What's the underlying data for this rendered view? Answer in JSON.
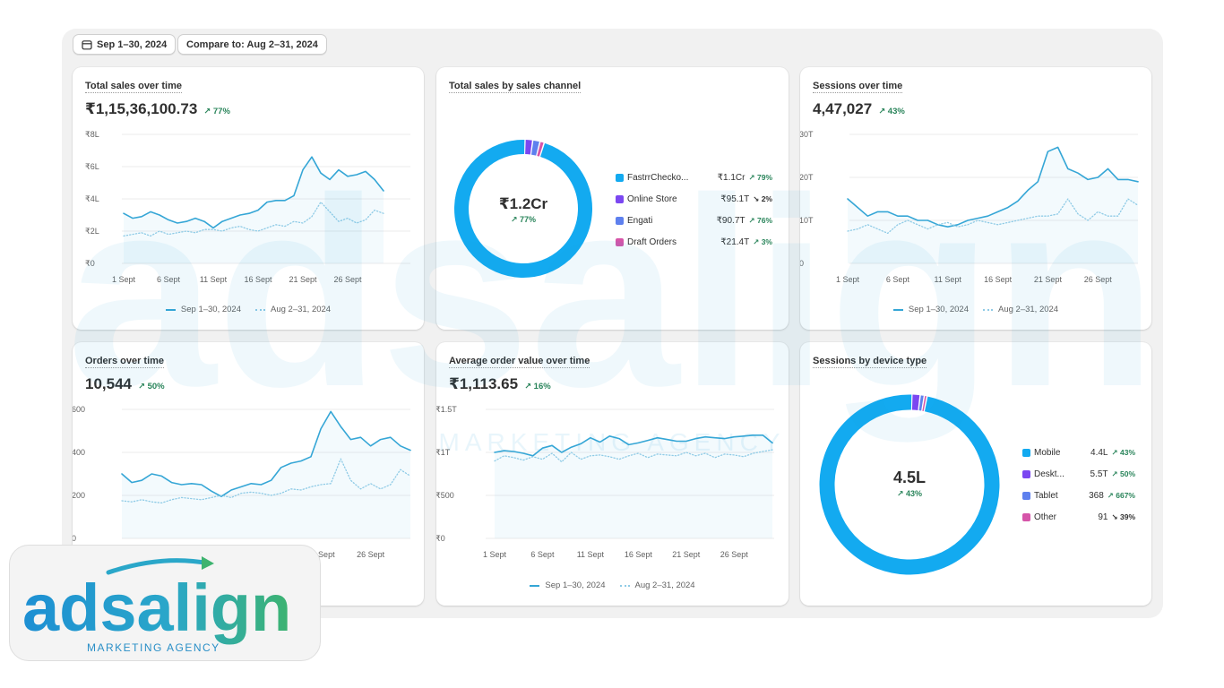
{
  "toolbar": {
    "date_range": "Sep 1–30, 2024",
    "compare": "Compare to: Aug 2–31, 2024",
    "calendar_icon": "calendar-icon"
  },
  "legend": {
    "current": "Sep 1–30, 2024",
    "previous": "Aug 2–31, 2024"
  },
  "colors": {
    "current": "#35a6d6",
    "previous": "#8fcbe6",
    "positive": "#29845a"
  },
  "cards": {
    "total_sales": {
      "title": "Total sales over time",
      "value": "₹1,15,36,100.73",
      "delta": "↗ 77%"
    },
    "sales_channel": {
      "title": "Total sales by sales channel",
      "center_value": "₹1.2Cr",
      "center_delta": "↗ 77%"
    },
    "sessions": {
      "title": "Sessions over time",
      "value": "4,47,027",
      "delta": "↗ 43%"
    },
    "orders": {
      "title": "Orders over time",
      "value": "10,544",
      "delta": "↗ 50%"
    },
    "aov": {
      "title": "Average order value over time",
      "value": "₹1,113.65",
      "delta": "↗ 16%"
    },
    "device": {
      "title": "Sessions by device type",
      "center_value": "4.5L",
      "center_delta": "↗ 43%"
    }
  },
  "watermark": {
    "brand": "adsalign",
    "tagline": "MARKETING AGENCY"
  },
  "chart_data": [
    {
      "id": "total_sales",
      "type": "line",
      "title": "Total sales over time",
      "x_ticks": [
        "1 Sept",
        "6 Sept",
        "11 Sept",
        "16 Sept",
        "21 Sept",
        "26 Sept"
      ],
      "y_ticks": [
        "₹0",
        "₹2L",
        "₹4L",
        "₹6L",
        "₹8L"
      ],
      "ylim": [
        0,
        8
      ],
      "x": [
        1,
        2,
        3,
        4,
        5,
        6,
        7,
        8,
        9,
        10,
        11,
        12,
        13,
        14,
        15,
        16,
        17,
        18,
        19,
        20,
        21,
        22,
        23,
        24,
        25,
        26,
        27,
        28,
        29,
        30
      ],
      "series": [
        {
          "name": "Sep 1–30, 2024",
          "style": "solid",
          "values": [
            3.1,
            2.8,
            2.9,
            3.2,
            3.0,
            2.7,
            2.5,
            2.6,
            2.8,
            2.6,
            2.2,
            2.6,
            2.8,
            3.0,
            3.1,
            3.3,
            3.8,
            3.9,
            3.9,
            4.2,
            5.8,
            6.6,
            5.6,
            5.2,
            5.8,
            5.4,
            5.5,
            5.7,
            5.2,
            4.5
          ]
        },
        {
          "name": "Aug 2–31, 2024",
          "style": "dotted",
          "values": [
            1.7,
            1.8,
            1.9,
            1.7,
            2.0,
            1.8,
            1.9,
            2.0,
            1.9,
            2.1,
            2.1,
            2.0,
            2.2,
            2.3,
            2.1,
            2.0,
            2.2,
            2.4,
            2.3,
            2.6,
            2.5,
            2.9,
            3.8,
            3.2,
            2.6,
            2.8,
            2.5,
            2.7,
            3.3,
            3.1
          ]
        }
      ]
    },
    {
      "id": "sales_channel",
      "type": "pie",
      "title": "Total sales by sales channel",
      "slices": [
        {
          "label": "FastrrChecko...",
          "value_label": "₹1.1Cr",
          "delta": "↗ 79%",
          "dir": "up",
          "color": "#13aaf0",
          "share": 0.955
        },
        {
          "label": "Online Store",
          "value_label": "₹95.1T",
          "delta": "↘ 2%",
          "dir": "down",
          "color": "#7b47f1",
          "share": 0.018
        },
        {
          "label": "Engati",
          "value_label": "₹90.7T",
          "delta": "↗ 76%",
          "dir": "up",
          "color": "#5e80ee",
          "share": 0.017
        },
        {
          "label": "Draft Orders",
          "value_label": "₹21.4T",
          "delta": "↗ 3%",
          "dir": "up",
          "color": "#d655a9",
          "share": 0.01
        }
      ]
    },
    {
      "id": "sessions",
      "type": "line",
      "title": "Sessions over time",
      "x_ticks": [
        "1 Sept",
        "6 Sept",
        "11 Sept",
        "16 Sept",
        "21 Sept",
        "26 Sept"
      ],
      "y_ticks": [
        "0",
        "10T",
        "20T",
        "30T"
      ],
      "ylim": [
        0,
        30
      ],
      "x": [
        1,
        2,
        3,
        4,
        5,
        6,
        7,
        8,
        9,
        10,
        11,
        12,
        13,
        14,
        15,
        16,
        17,
        18,
        19,
        20,
        21,
        22,
        23,
        24,
        25,
        26,
        27,
        28,
        29,
        30
      ],
      "series": [
        {
          "name": "Sep 1–30, 2024",
          "style": "solid",
          "values": [
            15,
            13,
            11,
            12,
            12,
            11,
            11,
            10,
            10,
            9,
            8.5,
            9,
            10,
            10.5,
            11,
            12,
            13,
            14.5,
            17,
            19,
            26,
            27,
            22,
            21,
            19.5,
            20,
            22,
            19.5,
            19.5,
            19
          ]
        },
        {
          "name": "Aug 2–31, 2024",
          "style": "dotted",
          "values": [
            7.5,
            8,
            9,
            8,
            7,
            9,
            10,
            9,
            8,
            9,
            9.5,
            8.5,
            9,
            10,
            9.5,
            9,
            9.5,
            10,
            10.5,
            11,
            11,
            11.5,
            15,
            11.5,
            10,
            12,
            11,
            11,
            15,
            13.5
          ]
        }
      ]
    },
    {
      "id": "orders",
      "type": "line",
      "title": "Orders over time",
      "x_ticks": [
        "21 Sept",
        "26 Sept"
      ],
      "y_ticks": [
        "0",
        "200",
        "400",
        "600"
      ],
      "ylim": [
        0,
        600
      ],
      "x": [
        1,
        2,
        3,
        4,
        5,
        6,
        7,
        8,
        9,
        10,
        11,
        12,
        13,
        14,
        15,
        16,
        17,
        18,
        19,
        20,
        21,
        22,
        23,
        24,
        25,
        26,
        27,
        28,
        29,
        30
      ],
      "series": [
        {
          "name": "Sep 1–30, 2024",
          "style": "solid",
          "values": [
            300,
            260,
            270,
            300,
            290,
            260,
            250,
            255,
            250,
            220,
            195,
            225,
            240,
            255,
            250,
            270,
            330,
            350,
            360,
            380,
            510,
            590,
            520,
            460,
            470,
            430,
            460,
            470,
            430,
            410
          ]
        },
        {
          "name": "Aug 2–31, 2024",
          "style": "dotted",
          "values": [
            175,
            170,
            180,
            170,
            165,
            180,
            190,
            185,
            180,
            190,
            200,
            190,
            210,
            215,
            210,
            200,
            210,
            230,
            225,
            240,
            250,
            255,
            370,
            270,
            230,
            255,
            230,
            250,
            320,
            290
          ]
        }
      ]
    },
    {
      "id": "aov",
      "type": "line",
      "title": "Average order value over time",
      "x_ticks": [
        "1 Sept",
        "6 Sept",
        "11 Sept",
        "16 Sept",
        "21 Sept",
        "26 Sept"
      ],
      "y_ticks": [
        "₹0",
        "₹500",
        "₹1T",
        "₹1.5T"
      ],
      "ylim": [
        0,
        1500
      ],
      "x": [
        1,
        2,
        3,
        4,
        5,
        6,
        7,
        8,
        9,
        10,
        11,
        12,
        13,
        14,
        15,
        16,
        17,
        18,
        19,
        20,
        21,
        22,
        23,
        24,
        25,
        26,
        27,
        28,
        29,
        30
      ],
      "series": [
        {
          "name": "Sep 1–30, 2024",
          "style": "solid",
          "values": [
            1000,
            1020,
            1010,
            990,
            960,
            1050,
            1080,
            1000,
            1060,
            1100,
            1170,
            1120,
            1190,
            1160,
            1090,
            1110,
            1140,
            1170,
            1150,
            1130,
            1130,
            1160,
            1180,
            1170,
            1160,
            1180,
            1190,
            1200,
            1200,
            1110
          ]
        },
        {
          "name": "Aug 2–31, 2024",
          "style": "dotted",
          "values": [
            900,
            960,
            940,
            910,
            950,
            920,
            990,
            890,
            1000,
            920,
            960,
            970,
            950,
            920,
            960,
            990,
            940,
            980,
            970,
            960,
            1000,
            960,
            990,
            940,
            980,
            970,
            950,
            990,
            1010,
            1030
          ]
        }
      ]
    },
    {
      "id": "device",
      "type": "pie",
      "title": "Sessions by device type",
      "slices": [
        {
          "label": "Mobile",
          "value_label": "4.4L",
          "delta": "↗ 43%",
          "dir": "up",
          "color": "#13aaf0",
          "share": 0.973
        },
        {
          "label": "Deskt...",
          "value_label": "5.5T",
          "delta": "↗ 50%",
          "dir": "up",
          "color": "#7b47f1",
          "share": 0.0147
        },
        {
          "label": "Tablet",
          "value_label": "368",
          "delta": "↗ 667%",
          "dir": "up",
          "color": "#5e80ee",
          "share": 0.0073
        },
        {
          "label": "Other",
          "value_label": "91",
          "delta": "↘ 39%",
          "dir": "down",
          "color": "#d655a9",
          "share": 0.005
        }
      ]
    }
  ]
}
